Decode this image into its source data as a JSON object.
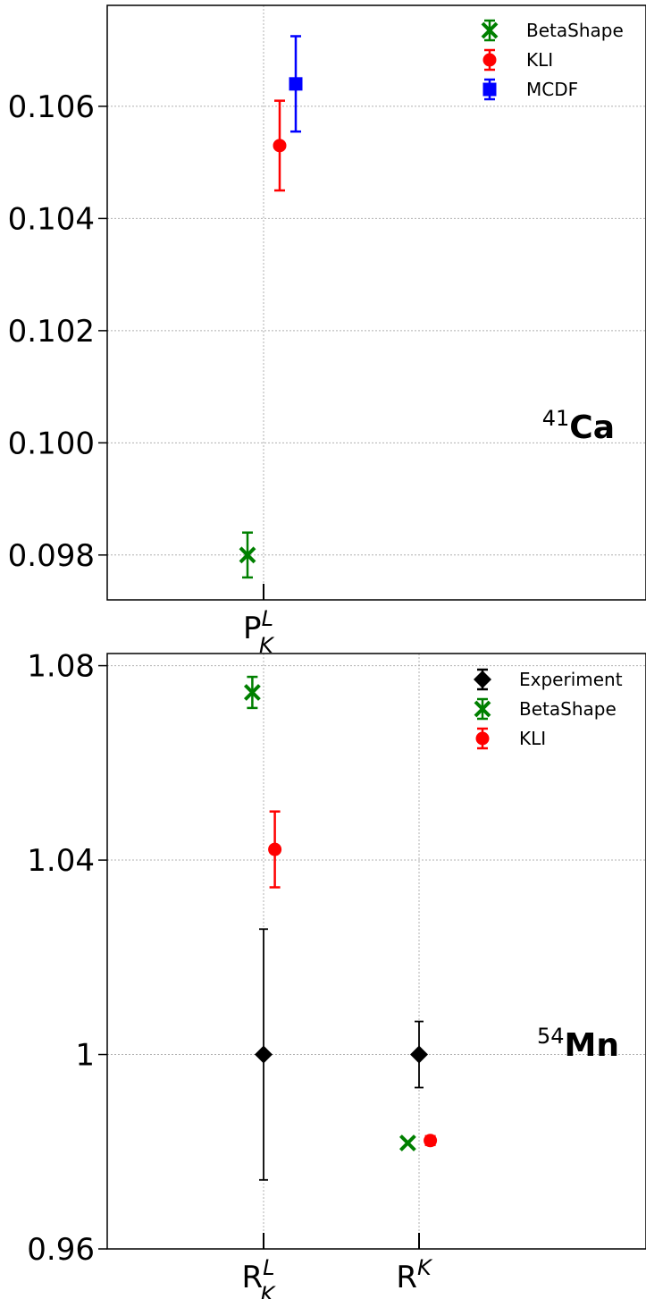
{
  "chart_data": [
    {
      "type": "scatter",
      "panel_label": {
        "mass": "41",
        "element": "Ca"
      },
      "categories": [
        {
          "base": "P",
          "sub": "K",
          "sup": "L"
        }
      ],
      "ylim": [
        0.0972,
        0.1078
      ],
      "yticks": [
        0.098,
        0.1,
        0.102,
        0.104,
        0.106
      ],
      "ytick_labels": [
        "0.098",
        "0.100",
        "0.102",
        "0.104",
        "0.106"
      ],
      "grid": true,
      "legend_position": "top-right",
      "series": [
        {
          "name": "BetaShape",
          "marker": "x",
          "color": "#008000",
          "points": [
            {
              "category": 0,
              "offset": -0.25,
              "y": 0.098,
              "err": 0.0004
            }
          ]
        },
        {
          "name": "KLI",
          "marker": "circle",
          "color": "#ff0000",
          "points": [
            {
              "category": 0,
              "offset": 0.25,
              "y": 0.1053,
              "err": 0.0008
            }
          ]
        },
        {
          "name": "MCDF",
          "marker": "square",
          "color": "#0000ff",
          "points": [
            {
              "category": 0,
              "offset": 0.5,
              "y": 0.1064,
              "err": 0.00085
            }
          ]
        }
      ]
    },
    {
      "type": "scatter",
      "panel_label": {
        "mass": "54",
        "element": "Mn"
      },
      "categories": [
        {
          "base": "R",
          "sub": "K",
          "sup": "L"
        },
        {
          "base": "R",
          "sub": "",
          "sup": "K"
        }
      ],
      "ylim": [
        0.96,
        1.0825
      ],
      "yticks": [
        0.96,
        1.0,
        1.04,
        1.08
      ],
      "ytick_labels": [
        "0.96",
        "1",
        "1.04",
        "1.08"
      ],
      "grid": true,
      "legend_position": "top-right",
      "series": [
        {
          "name": "Experiment",
          "marker": "diamond",
          "color": "#000000",
          "points": [
            {
              "category": 0,
              "offset": 0,
              "y": 1.0,
              "err": 0.0258
            },
            {
              "category": 1,
              "offset": 0,
              "y": 1.0,
              "err": 0.0068
            }
          ]
        },
        {
          "name": "BetaShape",
          "marker": "x",
          "color": "#008000",
          "points": [
            {
              "category": 0,
              "offset": -0.25,
              "y": 1.0745,
              "err": 0.0032
            },
            {
              "category": 1,
              "offset": -0.25,
              "y": 0.9818,
              "err": 0.0
            }
          ]
        },
        {
          "name": "KLI",
          "marker": "circle",
          "color": "#ff0000",
          "points": [
            {
              "category": 0,
              "offset": 0.25,
              "y": 1.0422,
              "err": 0.0078
            },
            {
              "category": 1,
              "offset": 0.25,
              "y": 0.9823,
              "err": 0.0009
            }
          ]
        }
      ]
    }
  ]
}
